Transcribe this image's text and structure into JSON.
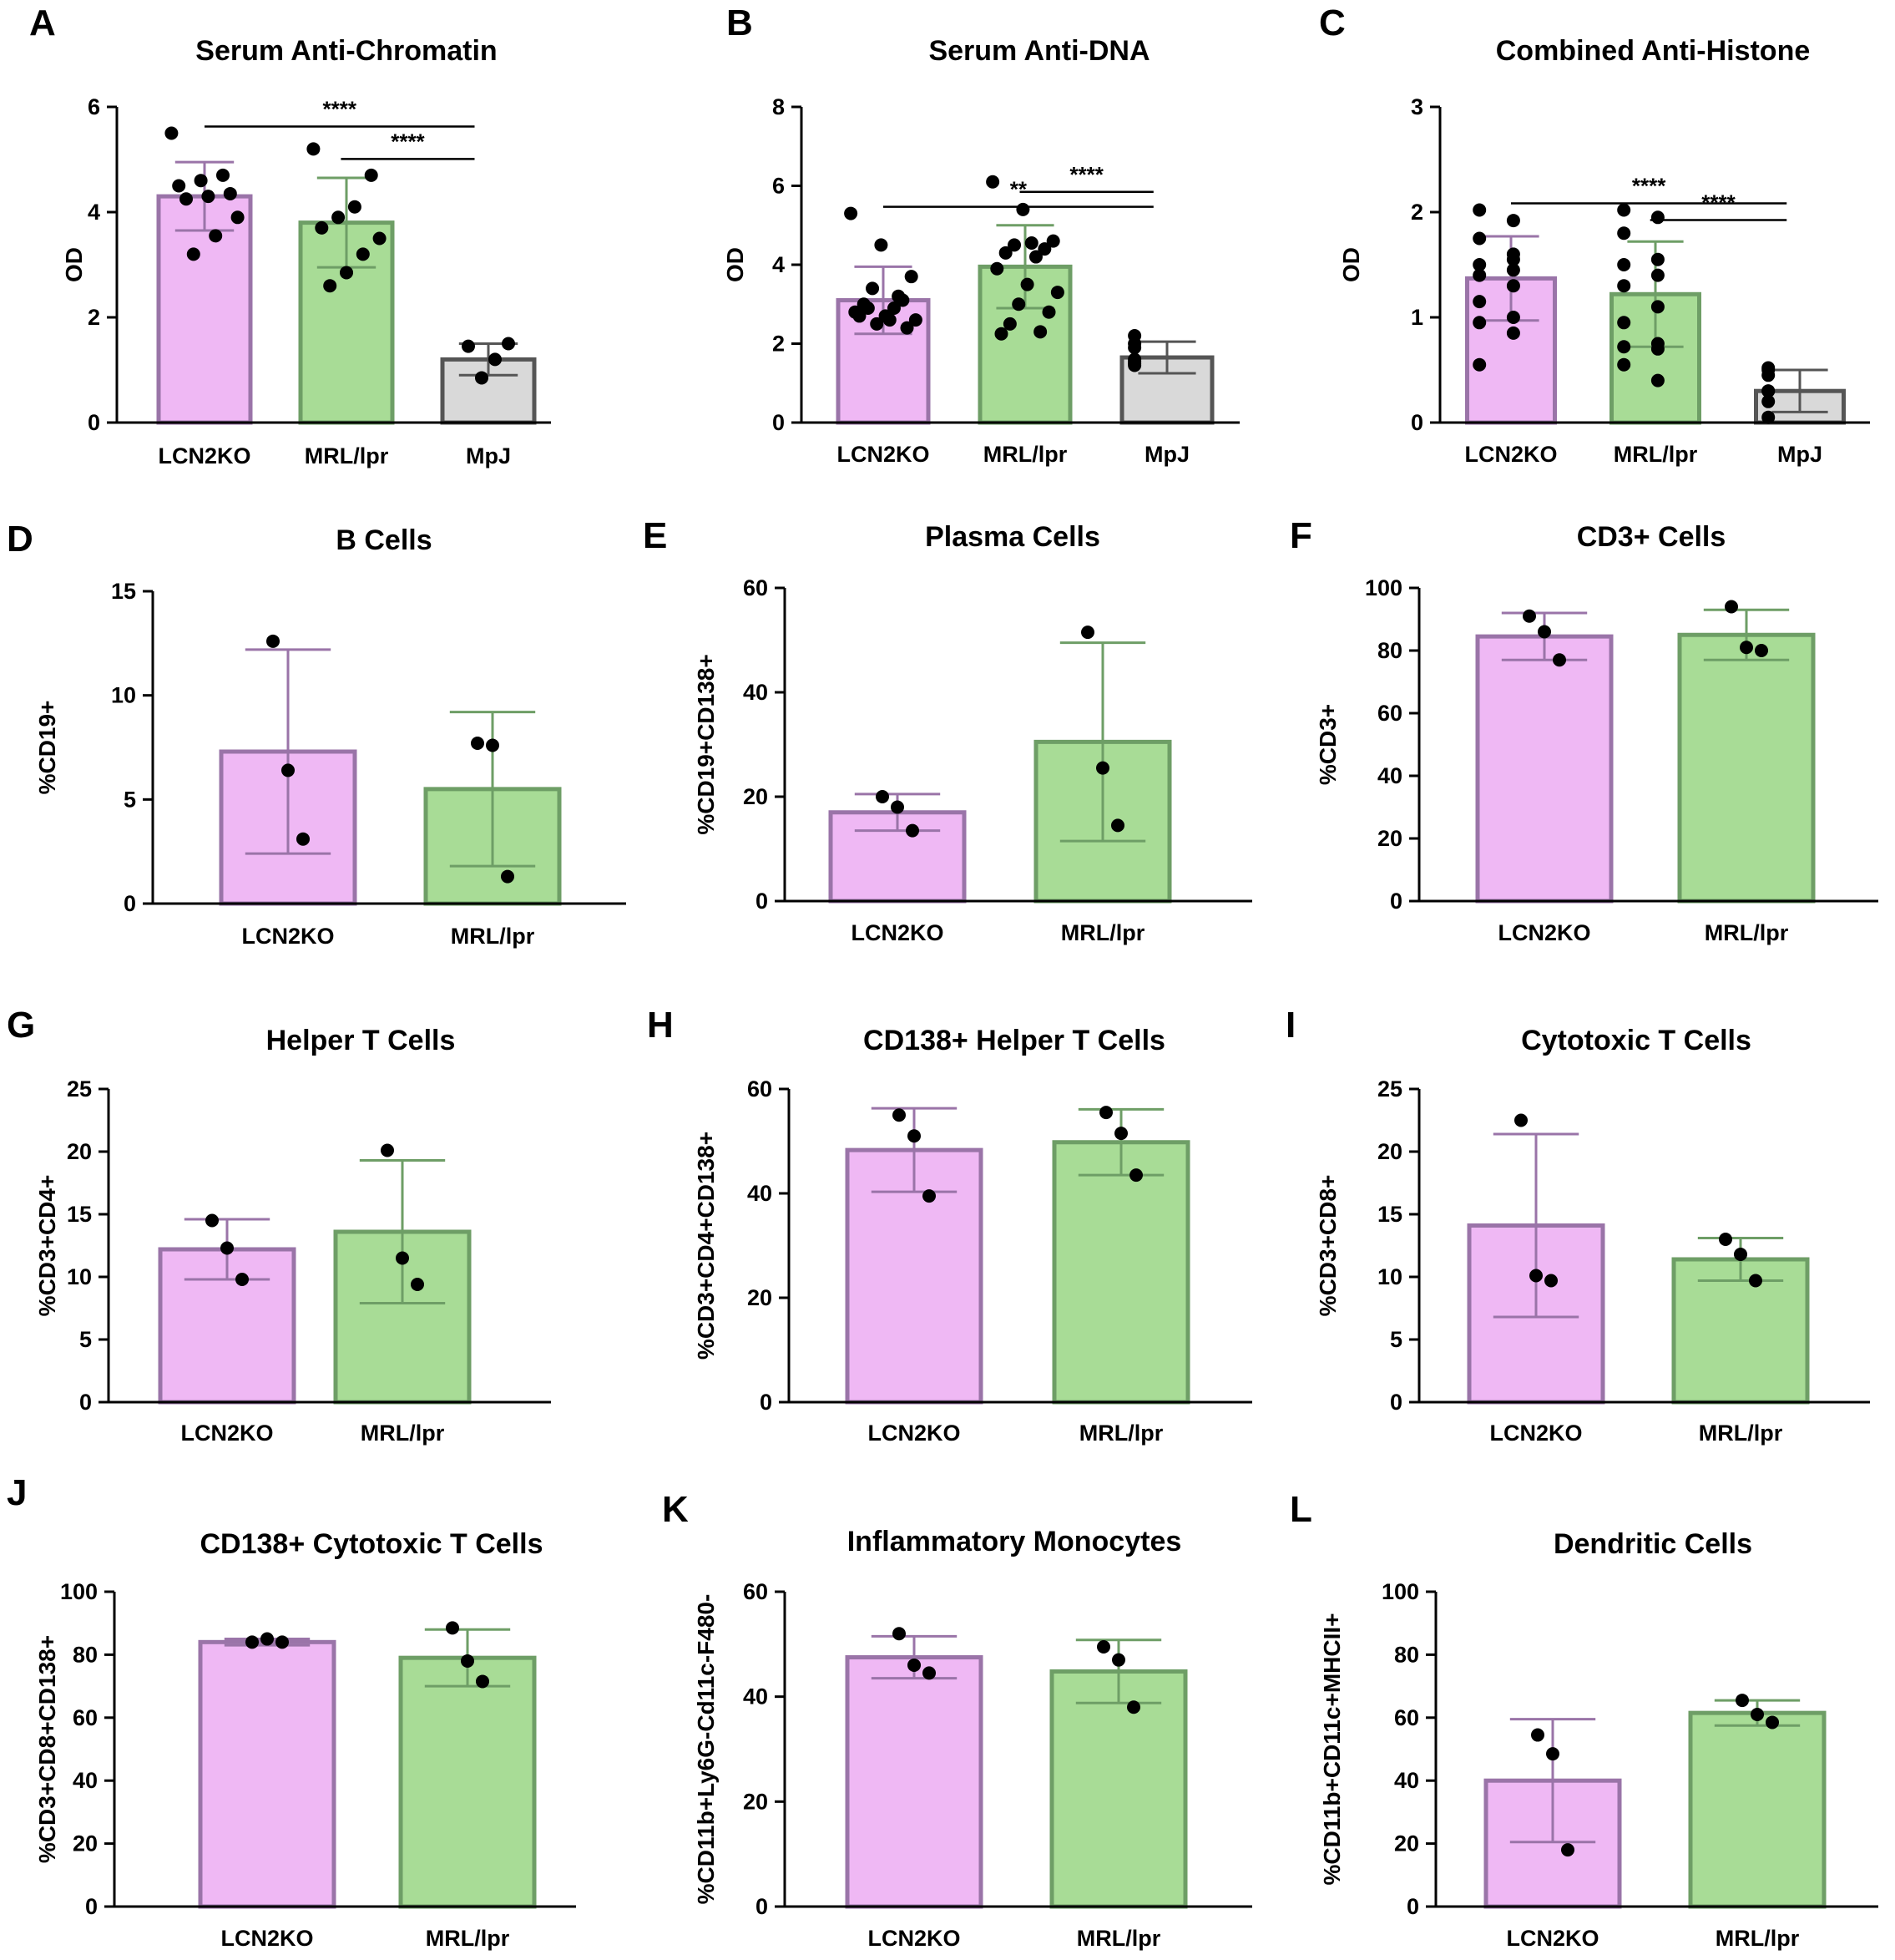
{
  "colors": {
    "LCN2KO": {
      "fill": "#efb8f4",
      "stroke": "#9a74a8"
    },
    "MRL/lpr": {
      "fill": "#a8dc96",
      "stroke": "#6e9e66"
    },
    "MpJ": {
      "fill": "#d9d9d9",
      "stroke": "#555555"
    },
    "axis": "#000000",
    "point": "#000000"
  },
  "chart_data": [
    {
      "type": "bar",
      "letter": "A",
      "title": "Serum Anti-Chromatin",
      "ylabel": "OD",
      "ylim": [
        0,
        6
      ],
      "yticks": [
        0,
        2,
        4,
        6
      ],
      "categories": [
        "LCN2KO",
        "MRL/lpr",
        "MpJ"
      ],
      "values": [
        4.3,
        3.8,
        1.2
      ],
      "errors": [
        0.65,
        0.85,
        0.3
      ],
      "points": [
        [
          5.5,
          4.7,
          4.6,
          4.5,
          4.35,
          4.3,
          4.25,
          3.9,
          3.55,
          3.2
        ],
        [
          5.2,
          4.7,
          4.1,
          3.9,
          3.7,
          3.5,
          3.2,
          2.85,
          2.6
        ],
        [
          1.45,
          1.5,
          1.2,
          0.85
        ]
      ],
      "significance": [
        {
          "from": 0,
          "to": 2,
          "label": "****"
        },
        {
          "from": 1,
          "to": 2,
          "label": "****"
        }
      ]
    },
    {
      "type": "bar",
      "letter": "B",
      "title": "Serum Anti-DNA",
      "ylabel": "OD",
      "ylim": [
        0,
        8
      ],
      "yticks": [
        0,
        2,
        4,
        6,
        8
      ],
      "categories": [
        "LCN2KO",
        "MRL/lpr",
        "MpJ"
      ],
      "values": [
        3.1,
        3.95,
        1.65
      ],
      "errors": [
        0.85,
        1.05,
        0.4
      ],
      "points": [
        [
          5.3,
          4.5,
          3.7,
          3.4,
          3.1,
          3.0,
          2.9,
          2.8,
          2.7,
          2.6,
          2.5,
          2.4,
          2.9,
          3.2,
          2.7,
          2.6
        ],
        [
          6.1,
          5.4,
          4.6,
          4.5,
          4.4,
          4.3,
          4.2,
          3.9,
          3.5,
          3.3,
          3.0,
          2.8,
          2.5,
          2.3,
          2.25,
          4.55
        ],
        [
          2.2,
          2.0,
          1.9,
          1.6,
          1.55,
          1.5,
          1.45
        ]
      ],
      "significance": [
        {
          "from": 0,
          "to": 2,
          "label": "**"
        },
        {
          "from": 1,
          "to": 2,
          "label": "****"
        }
      ]
    },
    {
      "type": "bar",
      "letter": "C",
      "title": "Combined Anti-Histone",
      "ylabel": "OD",
      "ylim": [
        0,
        3
      ],
      "yticks": [
        0,
        1,
        2,
        3
      ],
      "categories": [
        "LCN2KO",
        "MRL/lpr",
        "MpJ"
      ],
      "values": [
        1.37,
        1.22,
        0.3
      ],
      "errors": [
        0.4,
        0.5,
        0.2
      ],
      "points": [
        [
          2.02,
          1.92,
          1.75,
          1.55,
          1.5,
          1.45,
          1.4,
          1.3,
          1.15,
          1.0,
          0.95,
          0.85,
          0.55,
          1.6
        ],
        [
          2.02,
          1.95,
          1.8,
          1.55,
          1.5,
          1.4,
          1.3,
          1.1,
          0.95,
          0.75,
          0.72,
          0.7,
          0.55,
          0.4
        ],
        [
          0.52,
          0.5,
          0.45,
          0.3,
          0.2,
          0.05,
          0.3
        ]
      ],
      "significance": [
        {
          "from": 0,
          "to": 2,
          "label": "****"
        },
        {
          "from": 1,
          "to": 2,
          "label": "****"
        }
      ]
    },
    {
      "type": "bar",
      "letter": "D",
      "title": "B Cells",
      "ylabel": "%CD19+",
      "ylim": [
        0,
        15
      ],
      "yticks": [
        0,
        5,
        10,
        15
      ],
      "categories": [
        "LCN2KO",
        "MRL/lpr"
      ],
      "values": [
        7.3,
        5.5
      ],
      "errors": [
        4.9,
        3.7
      ],
      "points": [
        [
          12.6,
          6.4,
          3.1
        ],
        [
          7.7,
          7.6,
          1.3
        ]
      ]
    },
    {
      "type": "bar",
      "letter": "E",
      "title": "Plasma Cells",
      "ylabel": "%CD19+CD138+",
      "ylim": [
        0,
        60
      ],
      "yticks": [
        0,
        20,
        40,
        60
      ],
      "categories": [
        "LCN2KO",
        "MRL/lpr"
      ],
      "values": [
        17.0,
        30.5
      ],
      "errors": [
        3.5,
        19.0
      ],
      "points": [
        [
          20.0,
          18.0,
          13.5
        ],
        [
          51.5,
          25.5,
          14.5
        ]
      ]
    },
    {
      "type": "bar",
      "letter": "F",
      "title": "CD3+ Cells",
      "ylabel": "%CD3+",
      "ylim": [
        0,
        100
      ],
      "yticks": [
        0,
        20,
        40,
        60,
        80,
        100
      ],
      "categories": [
        "LCN2KO",
        "MRL/lpr"
      ],
      "values": [
        84.5,
        85.0
      ],
      "errors": [
        7.5,
        8.0
      ],
      "points": [
        [
          91.0,
          86.0,
          77.0
        ],
        [
          94.0,
          81.0,
          80.0
        ]
      ]
    },
    {
      "type": "bar",
      "letter": "G",
      "title": "Helper T Cells",
      "ylabel": "%CD3+CD4+",
      "ylim": [
        0,
        25
      ],
      "yticks": [
        0,
        5,
        10,
        15,
        20,
        25
      ],
      "categories": [
        "LCN2KO",
        "MRL/lpr"
      ],
      "values": [
        12.2,
        13.6
      ],
      "errors": [
        2.4,
        5.7
      ],
      "points": [
        [
          14.5,
          12.3,
          9.8
        ],
        [
          20.1,
          11.5,
          9.4
        ]
      ]
    },
    {
      "type": "bar",
      "letter": "H",
      "title": "CD138+ Helper T Cells",
      "ylabel": "%CD3+CD4+CD138+",
      "ylim": [
        0,
        60
      ],
      "yticks": [
        0,
        20,
        40,
        60
      ],
      "categories": [
        "LCN2KO",
        "MRL/lpr"
      ],
      "values": [
        48.3,
        49.8
      ],
      "errors": [
        8.0,
        6.3
      ],
      "points": [
        [
          55.0,
          51.0,
          39.5
        ],
        [
          55.5,
          51.5,
          43.5
        ]
      ]
    },
    {
      "type": "bar",
      "letter": "I",
      "title": "Cytotoxic T Cells",
      "ylabel": "%CD3+CD8+",
      "ylim": [
        0,
        25
      ],
      "yticks": [
        0,
        5,
        10,
        15,
        20,
        25
      ],
      "categories": [
        "LCN2KO",
        "MRL/lpr"
      ],
      "values": [
        14.1,
        11.4
      ],
      "errors": [
        7.3,
        1.7
      ],
      "points": [
        [
          22.5,
          10.1,
          9.7
        ],
        [
          13.0,
          11.8,
          9.7
        ]
      ]
    },
    {
      "type": "bar",
      "letter": "J",
      "title": "CD138+ Cytotoxic T Cells",
      "ylabel": "%CD3+CD8+CD138+",
      "ylim": [
        0,
        100
      ],
      "yticks": [
        0,
        20,
        40,
        60,
        80,
        100
      ],
      "categories": [
        "LCN2KO",
        "MRL/lpr"
      ],
      "values": [
        84.0,
        79.0
      ],
      "errors": [
        1.0,
        9.0
      ],
      "points": [
        [
          84.0,
          85.0,
          84.0
        ],
        [
          88.5,
          78.0,
          71.5
        ]
      ]
    },
    {
      "type": "bar",
      "letter": "K",
      "title": "Inflammatory Monocytes",
      "ylabel": "%CD11b+Ly6G-Cd11c-F480-",
      "ylim": [
        0,
        60
      ],
      "yticks": [
        0,
        20,
        40,
        60
      ],
      "categories": [
        "LCN2KO",
        "MRL/lpr"
      ],
      "values": [
        47.5,
        44.8
      ],
      "errors": [
        4.0,
        6.0
      ],
      "points": [
        [
          52.0,
          46.0,
          44.5
        ],
        [
          49.5,
          47.0,
          38.0
        ]
      ]
    },
    {
      "type": "bar",
      "letter": "L",
      "title": "Dendritic Cells",
      "ylabel": "%CD11b+CD11c+MHCII+",
      "ylim": [
        0,
        100
      ],
      "yticks": [
        0,
        20,
        40,
        60,
        80,
        100
      ],
      "categories": [
        "LCN2KO",
        "MRL/lpr"
      ],
      "values": [
        40.0,
        61.5
      ],
      "errors": [
        19.5,
        4.0
      ],
      "points": [
        [
          54.5,
          48.5,
          18.0
        ],
        [
          65.5,
          61.0,
          58.5
        ]
      ]
    }
  ]
}
